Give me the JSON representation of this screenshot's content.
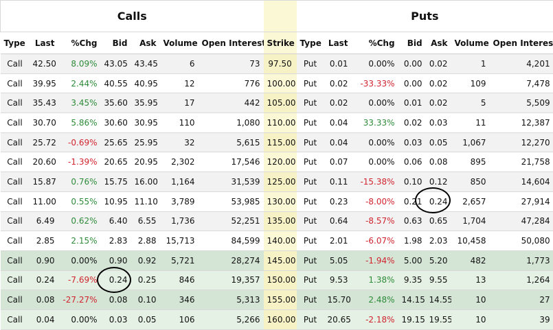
{
  "sections": {
    "calls": "Calls",
    "puts": "Puts"
  },
  "headers": {
    "type": "Type",
    "last": "Last",
    "chg": "%Chg",
    "bid": "Bid",
    "ask": "Ask",
    "volume": "Volume",
    "oi": "Open Interest",
    "strike": "Strike",
    "p_type": "Type",
    "p_last": "Last",
    "p_chg": "%Chg",
    "p_bid": "Bid",
    "p_ask": "Ask",
    "p_volume": "Volume",
    "p_oi": "Open Interest"
  },
  "rows": [
    {
      "c_type": "Call",
      "c_last": "42.50",
      "c_chg": "8.09%",
      "c_bid": "43.05",
      "c_ask": "43.45",
      "c_vol": "6",
      "c_oi": "73",
      "strike": "97.50",
      "p_type": "Put",
      "p_last": "0.01",
      "p_chg": "0.00%",
      "p_bid": "0.00",
      "p_ask": "0.02",
      "p_vol": "1",
      "p_oi": "4,201"
    },
    {
      "c_type": "Call",
      "c_last": "39.95",
      "c_chg": "2.44%",
      "c_bid": "40.55",
      "c_ask": "40.95",
      "c_vol": "12",
      "c_oi": "776",
      "strike": "100.00",
      "p_type": "Put",
      "p_last": "0.02",
      "p_chg": "-33.33%",
      "p_bid": "0.00",
      "p_ask": "0.02",
      "p_vol": "109",
      "p_oi": "7,478"
    },
    {
      "c_type": "Call",
      "c_last": "35.43",
      "c_chg": "3.45%",
      "c_bid": "35.60",
      "c_ask": "35.95",
      "c_vol": "17",
      "c_oi": "442",
      "strike": "105.00",
      "p_type": "Put",
      "p_last": "0.02",
      "p_chg": "0.00%",
      "p_bid": "0.01",
      "p_ask": "0.02",
      "p_vol": "5",
      "p_oi": "5,509"
    },
    {
      "c_type": "Call",
      "c_last": "30.70",
      "c_chg": "5.86%",
      "c_bid": "30.60",
      "c_ask": "30.95",
      "c_vol": "110",
      "c_oi": "1,080",
      "strike": "110.00",
      "p_type": "Put",
      "p_last": "0.04",
      "p_chg": "33.33%",
      "p_bid": "0.02",
      "p_ask": "0.03",
      "p_vol": "11",
      "p_oi": "12,387"
    },
    {
      "c_type": "Call",
      "c_last": "25.72",
      "c_chg": "-0.69%",
      "c_bid": "25.65",
      "c_ask": "25.95",
      "c_vol": "32",
      "c_oi": "5,615",
      "strike": "115.00",
      "p_type": "Put",
      "p_last": "0.04",
      "p_chg": "0.00%",
      "p_bid": "0.03",
      "p_ask": "0.05",
      "p_vol": "1,067",
      "p_oi": "12,270"
    },
    {
      "c_type": "Call",
      "c_last": "20.60",
      "c_chg": "-1.39%",
      "c_bid": "20.65",
      "c_ask": "20.95",
      "c_vol": "2,302",
      "c_oi": "17,546",
      "strike": "120.00",
      "p_type": "Put",
      "p_last": "0.07",
      "p_chg": "0.00%",
      "p_bid": "0.06",
      "p_ask": "0.08",
      "p_vol": "895",
      "p_oi": "21,758"
    },
    {
      "c_type": "Call",
      "c_last": "15.87",
      "c_chg": "0.76%",
      "c_bid": "15.75",
      "c_ask": "16.00",
      "c_vol": "1,164",
      "c_oi": "31,539",
      "strike": "125.00",
      "p_type": "Put",
      "p_last": "0.11",
      "p_chg": "-15.38%",
      "p_bid": "0.10",
      "p_ask": "0.12",
      "p_vol": "850",
      "p_oi": "14,604"
    },
    {
      "c_type": "Call",
      "c_last": "11.00",
      "c_chg": "0.55%",
      "c_bid": "10.95",
      "c_ask": "11.10",
      "c_vol": "3,789",
      "c_oi": "53,985",
      "strike": "130.00",
      "p_type": "Put",
      "p_last": "0.23",
      "p_chg": "-8.00%",
      "p_bid": "0.21",
      "p_ask": "0.24",
      "p_vol": "2,657",
      "p_oi": "27,914"
    },
    {
      "c_type": "Call",
      "c_last": "6.49",
      "c_chg": "0.62%",
      "c_bid": "6.40",
      "c_ask": "6.55",
      "c_vol": "1,736",
      "c_oi": "52,251",
      "strike": "135.00",
      "p_type": "Put",
      "p_last": "0.64",
      "p_chg": "-8.57%",
      "p_bid": "0.63",
      "p_ask": "0.65",
      "p_vol": "1,704",
      "p_oi": "47,284"
    },
    {
      "c_type": "Call",
      "c_last": "2.85",
      "c_chg": "2.15%",
      "c_bid": "2.83",
      "c_ask": "2.88",
      "c_vol": "15,713",
      "c_oi": "84,599",
      "strike": "140.00",
      "p_type": "Put",
      "p_last": "2.01",
      "p_chg": "-6.07%",
      "p_bid": "1.98",
      "p_ask": "2.03",
      "p_vol": "10,458",
      "p_oi": "50,080"
    },
    {
      "c_type": "Call",
      "c_last": "0.90",
      "c_chg": "0.00%",
      "c_bid": "0.90",
      "c_ask": "0.92",
      "c_vol": "5,721",
      "c_oi": "28,274",
      "strike": "145.00",
      "p_type": "Put",
      "p_last": "5.05",
      "p_chg": "-1.94%",
      "p_bid": "5.00",
      "p_ask": "5.20",
      "p_vol": "482",
      "p_oi": "1,773"
    },
    {
      "c_type": "Call",
      "c_last": "0.24",
      "c_chg": "-7.69%",
      "c_bid": "0.24",
      "c_ask": "0.25",
      "c_vol": "846",
      "c_oi": "19,357",
      "strike": "150.00",
      "p_type": "Put",
      "p_last": "9.53",
      "p_chg": "1.38%",
      "p_bid": "9.35",
      "p_ask": "9.55",
      "p_vol": "13",
      "p_oi": "1,264"
    },
    {
      "c_type": "Call",
      "c_last": "0.08",
      "c_chg": "-27.27%",
      "c_bid": "0.08",
      "c_ask": "0.10",
      "c_vol": "346",
      "c_oi": "5,313",
      "strike": "155.00",
      "p_type": "Put",
      "p_last": "15.70",
      "p_chg": "2.48%",
      "p_bid": "14.15",
      "p_ask": "14.55",
      "p_vol": "10",
      "p_oi": "27"
    },
    {
      "c_type": "Call",
      "c_last": "0.04",
      "c_chg": "0.00%",
      "c_bid": "0.03",
      "c_ask": "0.05",
      "c_vol": "106",
      "c_oi": "5,266",
      "strike": "160.00",
      "p_type": "Put",
      "p_last": "20.65",
      "p_chg": "-2.18%",
      "p_bid": "19.15",
      "p_ask": "19.55",
      "p_vol": "10",
      "p_oi": "39"
    }
  ],
  "colors": {
    "positive": "#2e8b3a",
    "negative": "#d1242f",
    "strike_bg": "#fbf8d6",
    "itm_bg": "#e5f1e4"
  }
}
